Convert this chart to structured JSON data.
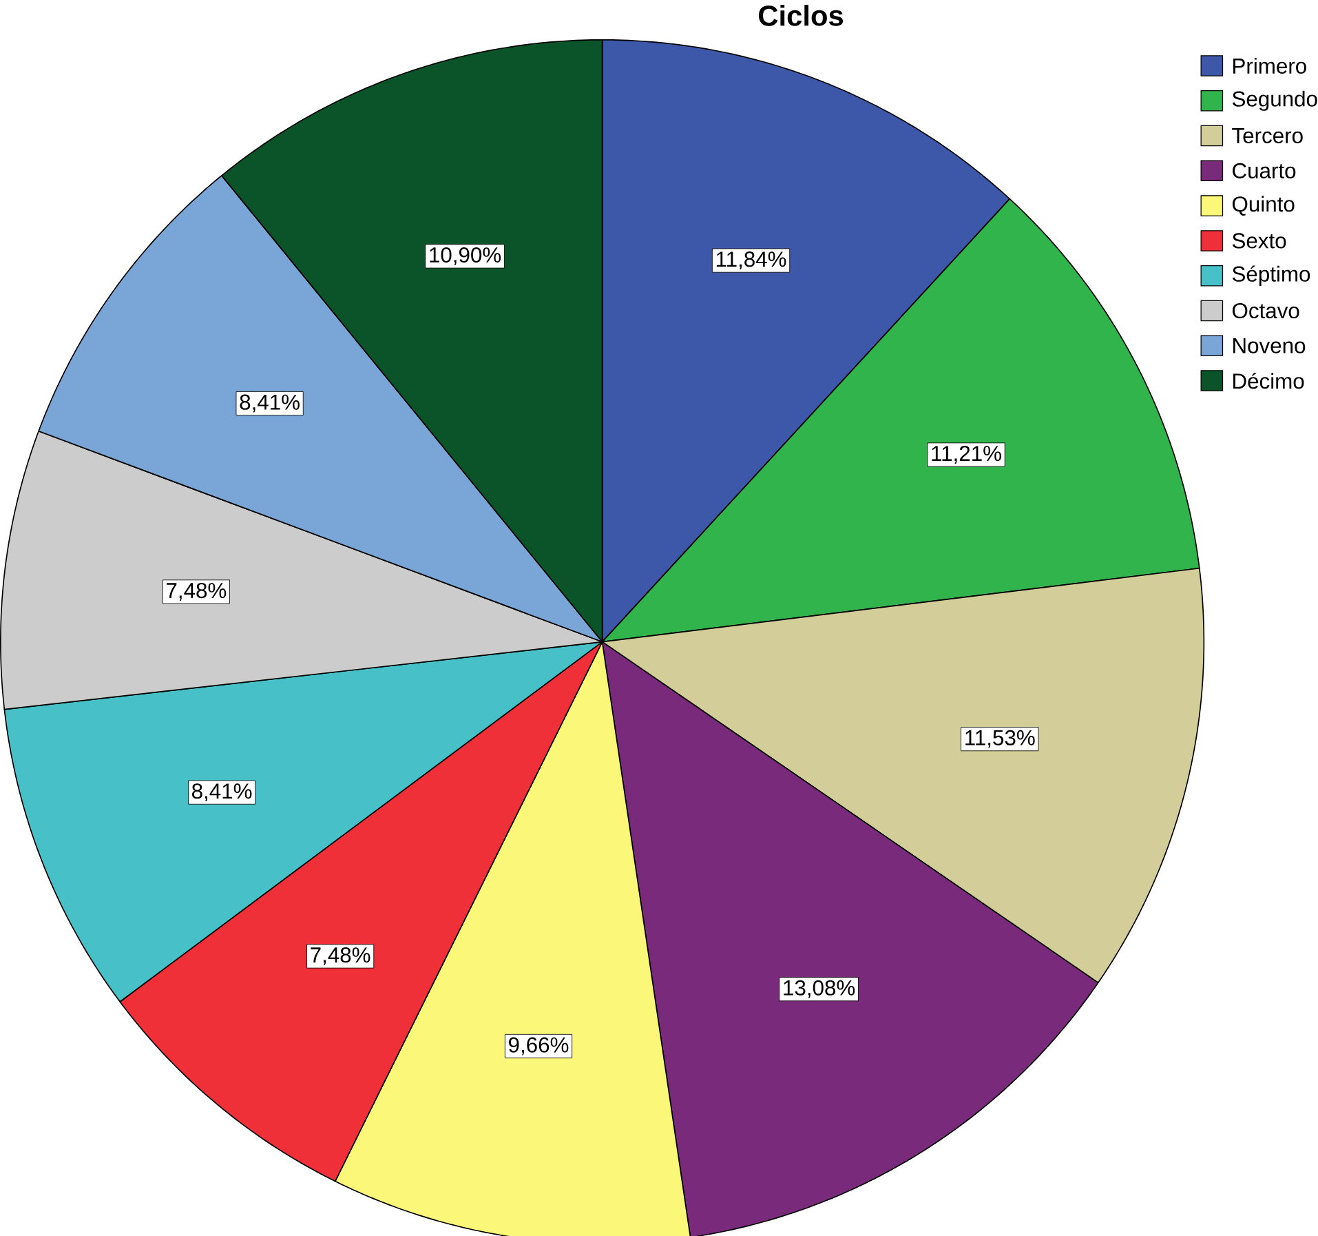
{
  "chart_data": {
    "type": "pie",
    "title": "Ciclos",
    "categories": [
      "Primero",
      "Segundo",
      "Tercero",
      "Cuarto",
      "Quinto",
      "Sexto",
      "Séptimo",
      "Octavo",
      "Noveno",
      "Décimo"
    ],
    "values": [
      11.84,
      11.21,
      11.53,
      13.08,
      9.66,
      7.48,
      8.41,
      7.48,
      8.41,
      10.9
    ],
    "colors": [
      "#3d57a9",
      "#31b44b",
      "#d3ce99",
      "#7a2a7b",
      "#fbf779",
      "#ef3038",
      "#48c0c8",
      "#cccccc",
      "#79a6d6",
      "#0b5429"
    ],
    "value_labels": [
      "11,84%",
      "11,21%",
      "11,53%",
      "13,08%",
      "9,66%",
      "7,48%",
      "8,41%",
      "7,48%",
      "8,41%",
      "10,90%"
    ],
    "legend": "top right"
  }
}
